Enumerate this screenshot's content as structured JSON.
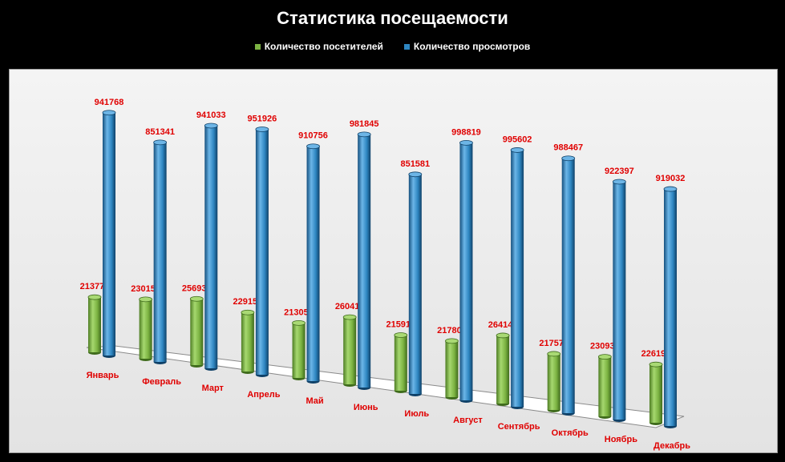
{
  "chart_data": {
    "type": "bar",
    "title": "Статистика посещаемости",
    "categories": [
      "Январь",
      "Февраль",
      "Март",
      "Апрель",
      "Май",
      "Июнь",
      "Июль",
      "Август",
      "Сентябрь",
      "Октябрь",
      "Ноябрь",
      "Декабрь"
    ],
    "series": [
      {
        "name": "Количество посетителей",
        "color": "#7cb342",
        "values": [
          213771,
          230151,
          256930,
          229153,
          213050,
          260416,
          215914,
          217804,
          264148,
          217574,
          230936,
          226193
        ]
      },
      {
        "name": "Количество просмотров",
        "color": "#2e86c1",
        "values": [
          941768,
          851341,
          941033,
          951926,
          910756,
          981845,
          851581,
          998819,
          995602,
          988467,
          922397,
          919032
        ]
      }
    ],
    "xlabel": "",
    "ylabel": "",
    "ylim": [
      0,
      1000000
    ],
    "grid": false,
    "legend": "top",
    "data_label_color": "#e00000",
    "category_label_color": "#e00000"
  }
}
